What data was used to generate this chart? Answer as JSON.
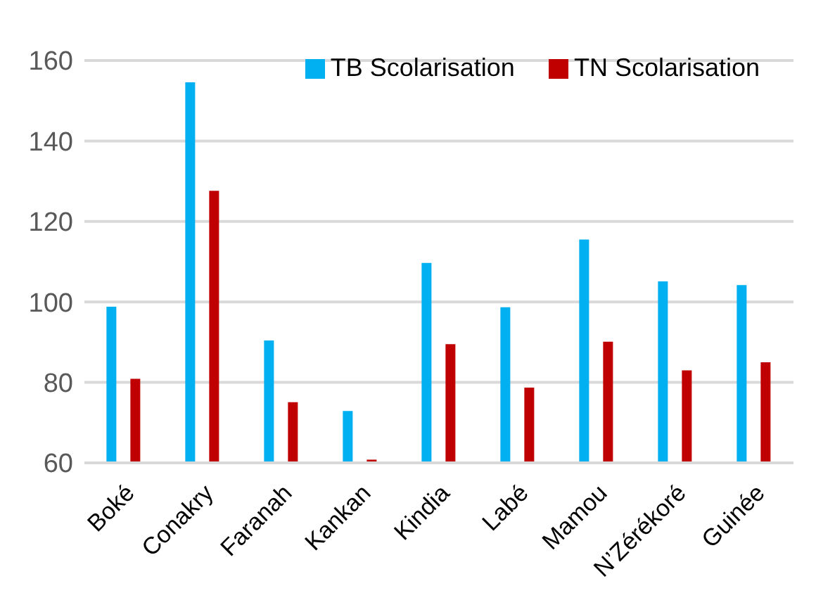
{
  "chart_data": {
    "type": "bar",
    "categories": [
      "Boké",
      "Conakry",
      "Faranah",
      "Kankan",
      "Kindia",
      "Labé",
      "Mamou",
      "N’Zérékoré",
      "Guinée"
    ],
    "series": [
      {
        "name": "TB Scolarisation",
        "color": "#00b0f0",
        "values": [
          98.8,
          154.6,
          90.4,
          72.9,
          109.7,
          98.7,
          115.5,
          105.1,
          104.2
        ]
      },
      {
        "name": "TN Scolarisation",
        "color": "#c00000",
        "values": [
          80.9,
          127.6,
          75.1,
          60.8,
          89.5,
          78.7,
          90.1,
          83.0,
          85.0
        ]
      }
    ],
    "ylim": [
      60,
      160
    ],
    "yticks": [
      60,
      80,
      100,
      120,
      140,
      160
    ],
    "grid": "y",
    "legend": "top right"
  }
}
